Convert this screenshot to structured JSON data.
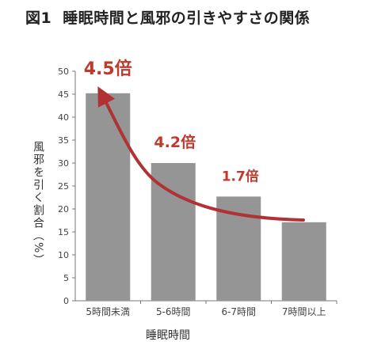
{
  "title": {
    "figure": "図1",
    "text": "睡眠時間と風邪の引きやすさの関係"
  },
  "chart_data": {
    "type": "bar",
    "categories": [
      "5時間未満",
      "5-6時間",
      "6-7時間",
      "7時間以上"
    ],
    "values": [
      45.2,
      30,
      22.7,
      17.1
    ],
    "xlabel": "睡眠時間",
    "ylabel": "風邪を引く割合（%）",
    "ylim": [
      0,
      50
    ],
    "yticks": [
      0,
      5,
      10,
      15,
      20,
      25,
      30,
      35,
      40,
      45,
      50
    ],
    "annotations": [
      "4.5倍",
      "4.2倍",
      "1.7倍"
    ],
    "colors": {
      "bar": "#959595",
      "annotation": "#c0392b",
      "arrow": "#b03235"
    },
    "grid": false
  }
}
